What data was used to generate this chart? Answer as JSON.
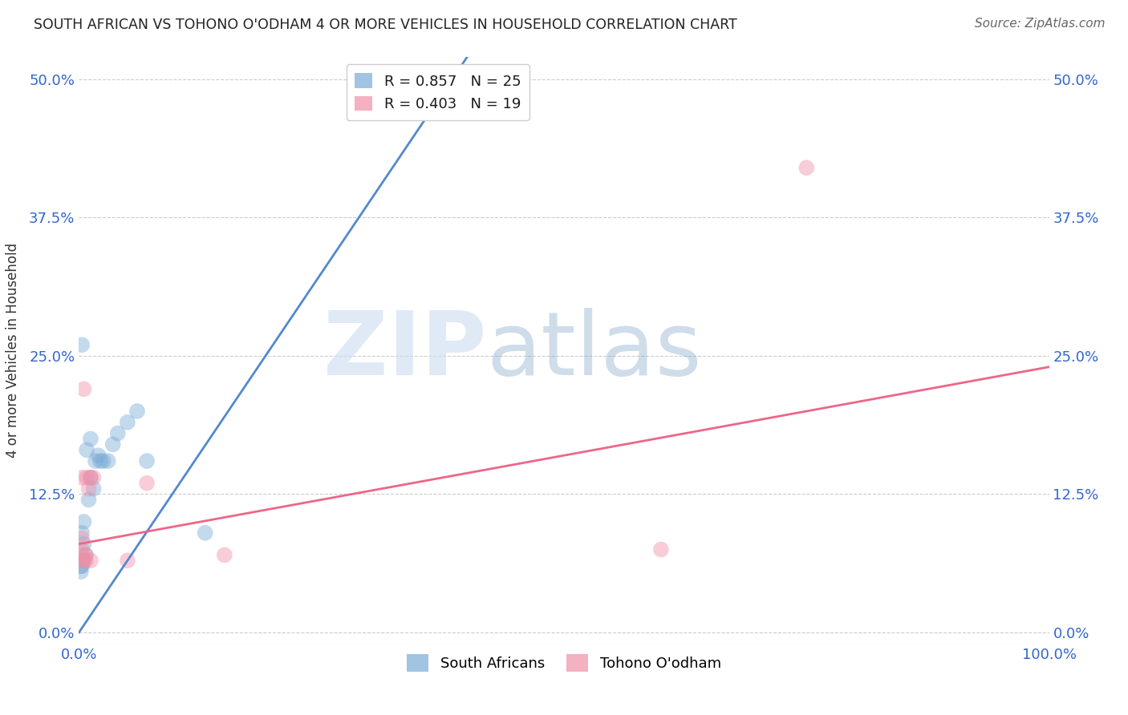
{
  "title": "SOUTH AFRICAN VS TOHONO O'ODHAM 4 OR MORE VEHICLES IN HOUSEHOLD CORRELATION CHART",
  "source": "Source: ZipAtlas.com",
  "ylabel_label": "4 or more Vehicles in Household",
  "legend_entries": [
    {
      "label": "R = 0.857   N = 25",
      "color": "#a8c4e0"
    },
    {
      "label": "R = 0.403   N = 19",
      "color": "#f4a8b8"
    }
  ],
  "legend_labels": [
    "South Africans",
    "Tohono O'odham"
  ],
  "blue_color": "#7aacd6",
  "pink_color": "#f090a8",
  "blue_line_color": "#5588cc",
  "pink_line_color": "#ee6688",
  "watermark_zip": "ZIP",
  "watermark_atlas": "atlas",
  "blue_scatter": [
    [
      0.3,
      6.0
    ],
    [
      0.5,
      8.0
    ],
    [
      0.7,
      7.0
    ],
    [
      0.3,
      9.0
    ],
    [
      0.5,
      10.0
    ],
    [
      1.0,
      12.0
    ],
    [
      1.2,
      14.0
    ],
    [
      1.5,
      13.0
    ],
    [
      1.7,
      15.5
    ],
    [
      2.0,
      16.0
    ],
    [
      2.2,
      15.5
    ],
    [
      2.5,
      15.5
    ],
    [
      3.0,
      15.5
    ],
    [
      3.5,
      17.0
    ],
    [
      4.0,
      18.0
    ],
    [
      5.0,
      19.0
    ],
    [
      6.0,
      20.0
    ],
    [
      7.0,
      15.5
    ],
    [
      0.3,
      26.0
    ],
    [
      0.8,
      16.5
    ],
    [
      1.2,
      17.5
    ],
    [
      0.2,
      5.5
    ],
    [
      0.2,
      6.0
    ],
    [
      0.5,
      6.5
    ],
    [
      13.0,
      9.0
    ]
  ],
  "pink_scatter": [
    [
      0.3,
      14.0
    ],
    [
      0.5,
      22.0
    ],
    [
      0.8,
      14.0
    ],
    [
      1.0,
      13.0
    ],
    [
      1.2,
      14.0
    ],
    [
      1.5,
      14.0
    ],
    [
      0.3,
      7.0
    ],
    [
      0.5,
      6.5
    ],
    [
      0.7,
      7.0
    ],
    [
      7.0,
      13.5
    ],
    [
      15.0,
      7.0
    ],
    [
      60.0,
      7.5
    ],
    [
      75.0,
      42.0
    ],
    [
      0.7,
      6.5
    ],
    [
      1.2,
      6.5
    ],
    [
      5.0,
      6.5
    ],
    [
      0.3,
      8.5
    ],
    [
      0.3,
      7.5
    ],
    [
      0.3,
      6.5
    ]
  ],
  "blue_line": {
    "x": [
      0.0,
      40.0
    ],
    "y": [
      0.0,
      52.0
    ]
  },
  "pink_line": {
    "x": [
      0.0,
      100.0
    ],
    "y": [
      8.0,
      24.0
    ]
  },
  "xlim": [
    0.0,
    100.0
  ],
  "ylim": [
    -1.0,
    52.0
  ],
  "ytick_vals": [
    0.0,
    12.5,
    25.0,
    37.5,
    50.0
  ],
  "ytick_labels": [
    "0.0%",
    "12.5%",
    "25.0%",
    "37.5%",
    "50.0%"
  ],
  "xtick_vals": [
    0.0,
    25.0,
    50.0,
    75.0,
    100.0
  ],
  "xtick_labels": [
    "0.0%",
    "",
    "",
    "",
    "100.0%"
  ],
  "background_color": "#ffffff",
  "grid_color": "#cccccc"
}
